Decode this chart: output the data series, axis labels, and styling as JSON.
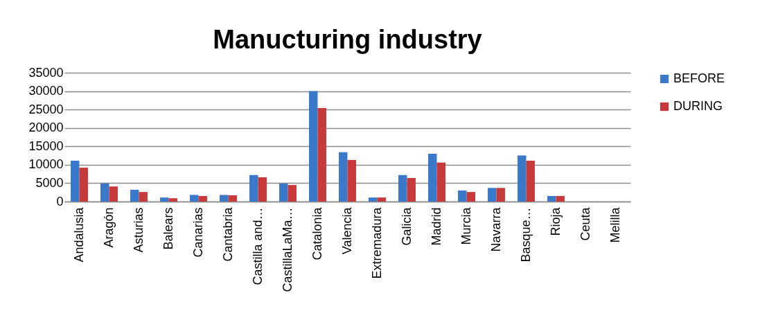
{
  "chart_data": {
    "type": "bar",
    "title": "Manucturing industry",
    "categories": [
      "Andalusia",
      "Aragón",
      "Asturias",
      "Balears",
      "Canarias",
      "Cantabria",
      "Castilla and…",
      "CastillaLaMa…",
      "Catalonia",
      "Valencia",
      "Extremadura",
      "Galicia",
      "Madrid",
      "Murcia",
      "Navarra",
      "Basque…",
      "Rioja",
      "Ceuta",
      "Melilla"
    ],
    "series": [
      {
        "name": "BEFORE",
        "color": "#3a78c9",
        "values": [
          11100,
          4900,
          3200,
          1100,
          1800,
          1800,
          7200,
          4900,
          30000,
          13400,
          1100,
          7200,
          13000,
          3000,
          3700,
          12500,
          1500,
          0,
          0
        ]
      },
      {
        "name": "DURING",
        "color": "#c8393a",
        "values": [
          9200,
          4100,
          2600,
          900,
          1500,
          1700,
          6600,
          4500,
          25400,
          11300,
          1100,
          6400,
          10600,
          2600,
          3700,
          11100,
          1500,
          0,
          0
        ]
      }
    ],
    "ylim": [
      0,
      35000
    ],
    "yticks": [
      0,
      5000,
      10000,
      15000,
      20000,
      25000,
      30000,
      35000
    ],
    "grid": "y",
    "legend": "right"
  }
}
